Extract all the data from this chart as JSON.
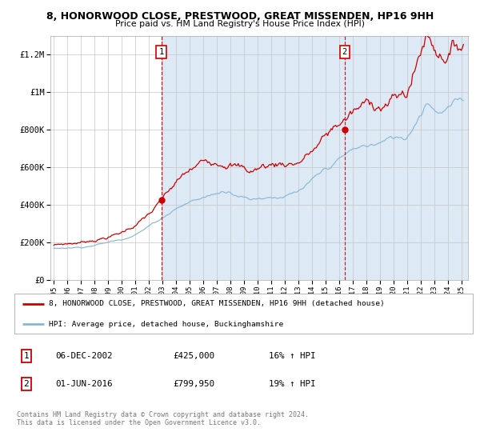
{
  "title": "8, HONORWOOD CLOSE, PRESTWOOD, GREAT MISSENDEN, HP16 9HH",
  "subtitle": "Price paid vs. HM Land Registry's House Price Index (HPI)",
  "ytick_labels": [
    "£0",
    "£200K",
    "£400K",
    "£600K",
    "£800K",
    "£1M",
    "£1.2M"
  ],
  "ytick_values": [
    0,
    200000,
    400000,
    600000,
    800000,
    1000000,
    1200000
  ],
  "ylim": [
    0,
    1300000
  ],
  "xlim_start": 1994.75,
  "xlim_end": 2025.5,
  "vline1_x": 2002.92,
  "vline2_x": 2016.42,
  "dot1_x": 2002.92,
  "dot1_y": 425000,
  "dot2_x": 2016.42,
  "dot2_y": 799950,
  "red_color": "#cc0000",
  "blue_color": "#88b8d8",
  "bg_fill_color": "#ddeaf5",
  "legend_line1": "8, HONORWOOD CLOSE, PRESTWOOD, GREAT MISSENDEN, HP16 9HH (detached house)",
  "legend_line2": "HPI: Average price, detached house, Buckinghamshire",
  "ann1_label": "1",
  "ann2_label": "2",
  "info1_num": "1",
  "info1_date": "06-DEC-2002",
  "info1_price": "£425,000",
  "info1_hpi": "16% ↑ HPI",
  "info2_num": "2",
  "info2_date": "01-JUN-2016",
  "info2_price": "£799,950",
  "info2_hpi": "19% ↑ HPI",
  "footer": "Contains HM Land Registry data © Crown copyright and database right 2024.\nThis data is licensed under the Open Government Licence v3.0.",
  "xtick_years": [
    1995,
    1996,
    1997,
    1998,
    1999,
    2000,
    2001,
    2002,
    2003,
    2004,
    2005,
    2006,
    2007,
    2008,
    2009,
    2010,
    2011,
    2012,
    2013,
    2014,
    2015,
    2016,
    2017,
    2018,
    2019,
    2020,
    2021,
    2022,
    2023,
    2024,
    2025
  ]
}
